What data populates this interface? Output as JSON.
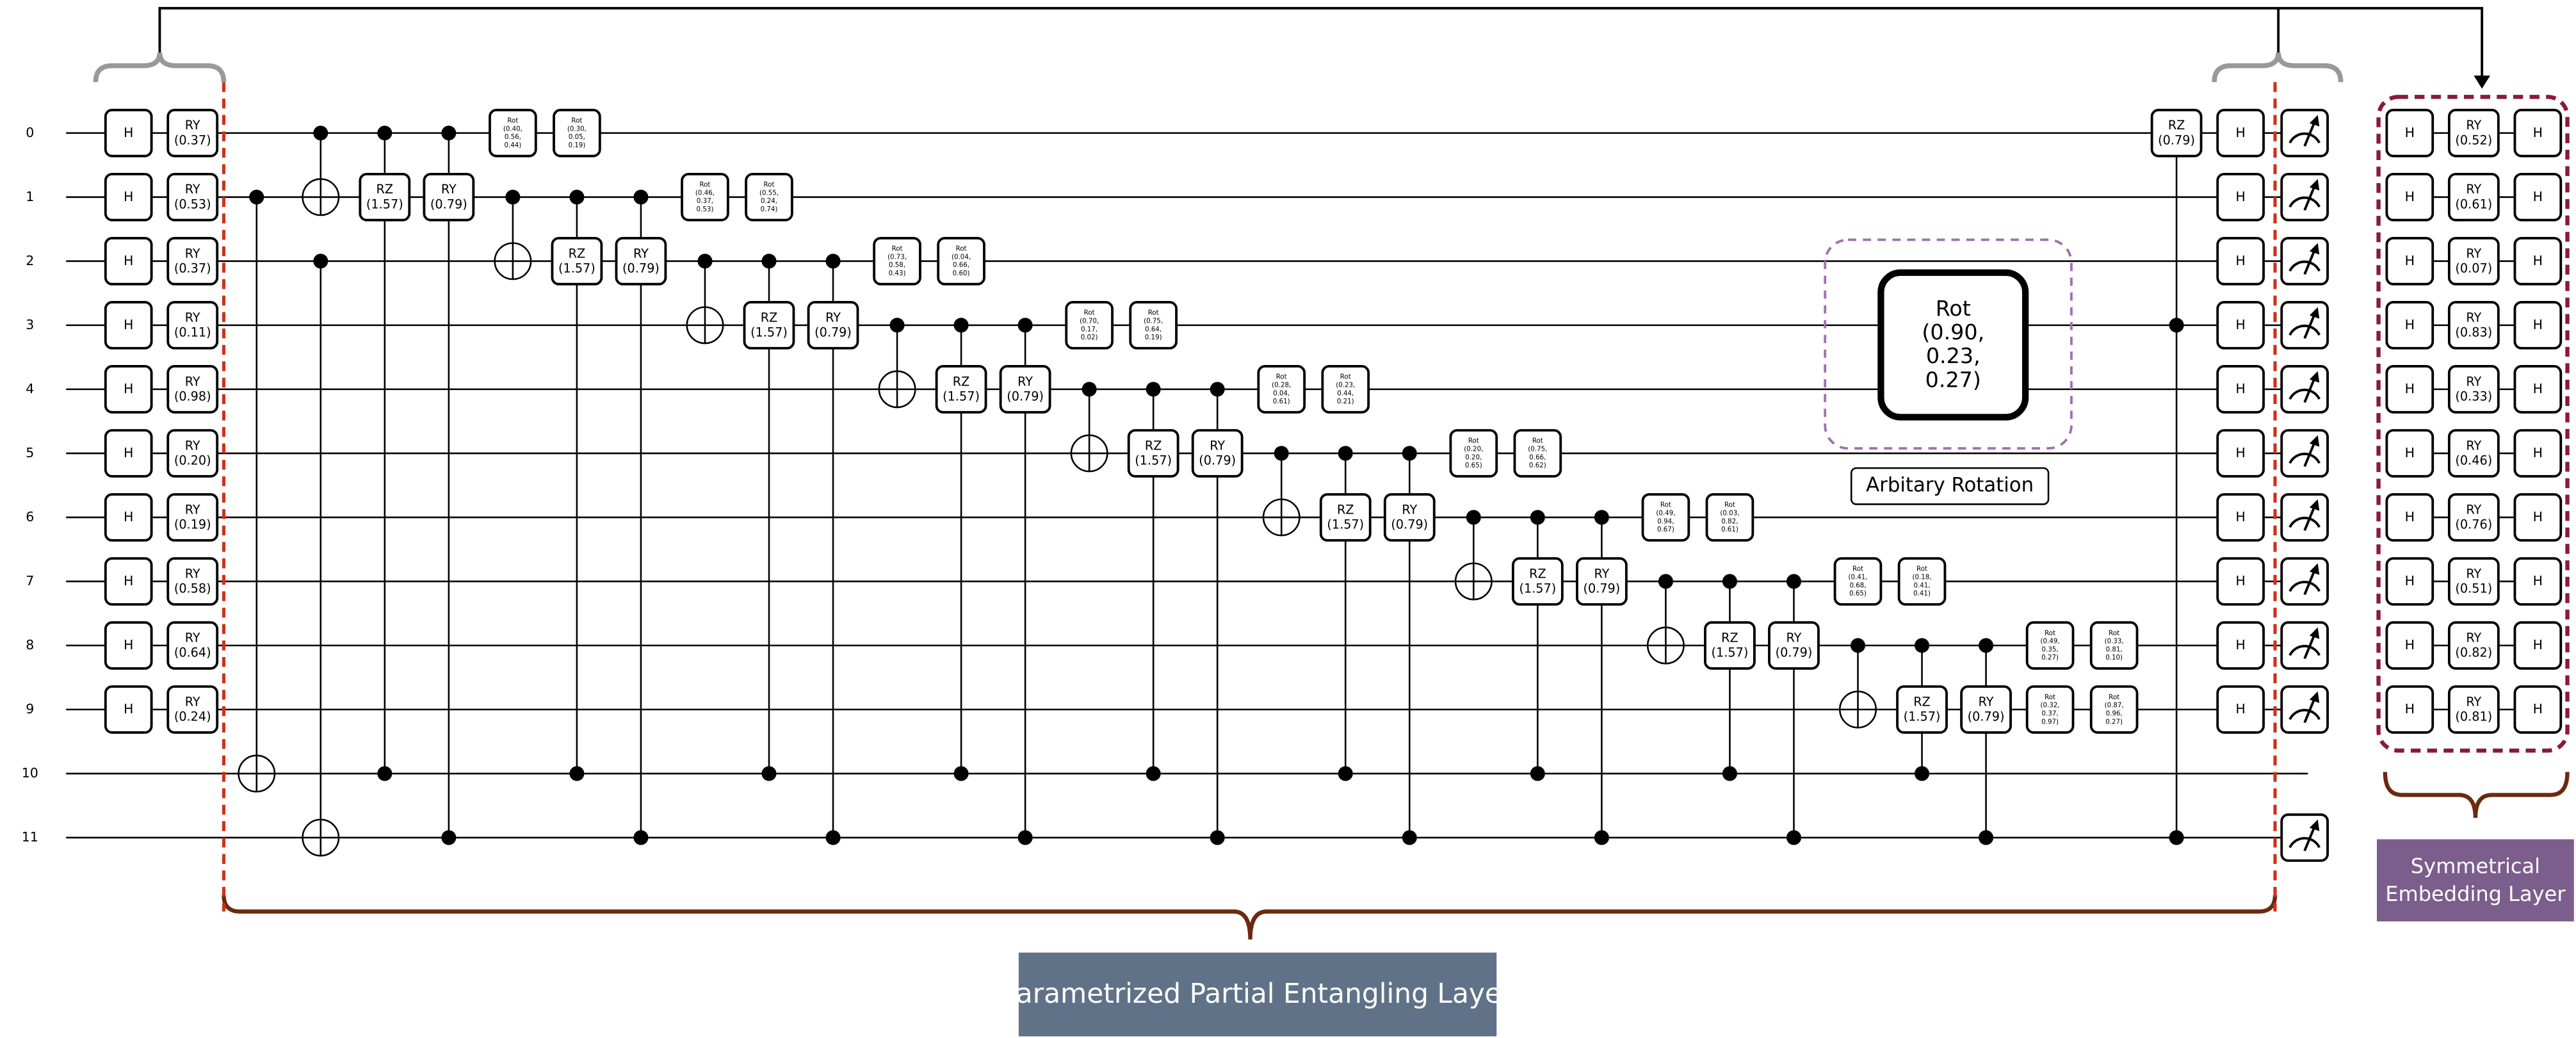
{
  "wire_labels": [
    "0",
    "1",
    "2",
    "3",
    "4",
    "5",
    "6",
    "7",
    "8",
    "9",
    "10",
    "11"
  ],
  "encoding_layer": {
    "gates": [
      {
        "h": "H",
        "ry": "RY",
        "angle": "(0.37)"
      },
      {
        "h": "H",
        "ry": "RY",
        "angle": "(0.53)"
      },
      {
        "h": "H",
        "ry": "RY",
        "angle": "(0.37)"
      },
      {
        "h": "H",
        "ry": "RY",
        "angle": "(0.11)"
      },
      {
        "h": "H",
        "ry": "RY",
        "angle": "(0.98)"
      },
      {
        "h": "H",
        "ry": "RY",
        "angle": "(0.20)"
      },
      {
        "h": "H",
        "ry": "RY",
        "angle": "(0.19)"
      },
      {
        "h": "H",
        "ry": "RY",
        "angle": "(0.58)"
      },
      {
        "h": "H",
        "ry": "RY",
        "angle": "(0.64)"
      },
      {
        "h": "H",
        "ry": "RY",
        "angle": "(0.24)"
      }
    ]
  },
  "entangling_layer": {
    "rz_gates": [
      {
        "name": "RZ",
        "angle": "(1.57)"
      },
      {
        "name": "RZ",
        "angle": "(1.57)"
      },
      {
        "name": "RZ",
        "angle": "(1.57)"
      },
      {
        "name": "RZ",
        "angle": "(1.57)"
      },
      {
        "name": "RZ",
        "angle": "(1.57)"
      },
      {
        "name": "RZ",
        "angle": "(1.57)"
      },
      {
        "name": "RZ",
        "angle": "(1.57)"
      },
      {
        "name": "RZ",
        "angle": "(1.57)"
      },
      {
        "name": "RZ",
        "angle": "(1.57)"
      }
    ],
    "ry_gates": [
      {
        "name": "RY",
        "angle": "(0.79)"
      },
      {
        "name": "RY",
        "angle": "(0.79)"
      },
      {
        "name": "RY",
        "angle": "(0.79)"
      },
      {
        "name": "RY",
        "angle": "(0.79)"
      },
      {
        "name": "RY",
        "angle": "(0.79)"
      },
      {
        "name": "RY",
        "angle": "(0.79)"
      },
      {
        "name": "RY",
        "angle": "(0.79)"
      },
      {
        "name": "RY",
        "angle": "(0.79)"
      },
      {
        "name": "RY",
        "angle": "(0.79)"
      }
    ],
    "rot_gates": [
      {
        "name": "Rot",
        "angles": [
          "(0.40,",
          "0.56,",
          "0.44)"
        ]
      },
      {
        "name": "Rot",
        "angles": [
          "(0.30,",
          "0.05,",
          "0.19)"
        ]
      },
      {
        "name": "Rot",
        "angles": [
          "(0.46,",
          "0.37,",
          "0.53)"
        ]
      },
      {
        "name": "Rot",
        "angles": [
          "(0.55,",
          "0.24,",
          "0.74)"
        ]
      },
      {
        "name": "Rot",
        "angles": [
          "(0.73,",
          "0.58,",
          "0.43)"
        ]
      },
      {
        "name": "Rot",
        "angles": [
          "(0.04,",
          "0.66,",
          "0.60)"
        ]
      },
      {
        "name": "Rot",
        "angles": [
          "(0.70,",
          "0.17,",
          "0.02)"
        ]
      },
      {
        "name": "Rot",
        "angles": [
          "(0.75,",
          "0.64,",
          "0.19)"
        ]
      },
      {
        "name": "Rot",
        "angles": [
          "(0.28,",
          "0.04,",
          "0.61)"
        ]
      },
      {
        "name": "Rot",
        "angles": [
          "(0.23,",
          "0.44,",
          "0.21)"
        ]
      },
      {
        "name": "Rot",
        "angles": [
          "(0.20,",
          "0.20,",
          "0.65)"
        ]
      },
      {
        "name": "Rot",
        "angles": [
          "(0.75,",
          "0.66,",
          "0.62)"
        ]
      },
      {
        "name": "Rot",
        "angles": [
          "(0.49,",
          "0.94,",
          "0.67)"
        ]
      },
      {
        "name": "Rot",
        "angles": [
          "(0.03,",
          "0.82,",
          "0.61)"
        ]
      },
      {
        "name": "Rot",
        "angles": [
          "(0.41,",
          "0.68,",
          "0.65)"
        ]
      },
      {
        "name": "Rot",
        "angles": [
          "(0.18,",
          "0.41,",
          "0.41)"
        ]
      },
      {
        "name": "Rot",
        "angles": [
          "(0.49,",
          "0.35,",
          "0.27)"
        ]
      },
      {
        "name": "Rot",
        "angles": [
          "(0.33,",
          "0.81,",
          "0.10)"
        ]
      },
      {
        "name": "Rot",
        "angles": [
          "(0.32,",
          "0.37,",
          "0.97)"
        ]
      },
      {
        "name": "Rot",
        "angles": [
          "(0.87,",
          "0.96,",
          "0.27)"
        ]
      }
    ]
  },
  "final_layer": {
    "rz": {
      "name": "RZ",
      "angle": "(0.79)"
    },
    "h_gates": [
      "H",
      "H",
      "H",
      "H",
      "H",
      "H",
      "H",
      "H",
      "H",
      "H"
    ]
  },
  "callout": {
    "name": "Rot",
    "angles": [
      "(0.90,",
      "0.23,",
      "0.27)"
    ],
    "caption": "Arbitary Rotation"
  },
  "symmetric_layer": {
    "gates": [
      {
        "h1": "H",
        "ry": "RY",
        "angle": "(0.52)",
        "h2": "H"
      },
      {
        "h1": "H",
        "ry": "RY",
        "angle": "(0.61)",
        "h2": "H"
      },
      {
        "h1": "H",
        "ry": "RY",
        "angle": "(0.07)",
        "h2": "H"
      },
      {
        "h1": "H",
        "ry": "RY",
        "angle": "(0.83)",
        "h2": "H"
      },
      {
        "h1": "H",
        "ry": "RY",
        "angle": "(0.33)",
        "h2": "H"
      },
      {
        "h1": "H",
        "ry": "RY",
        "angle": "(0.46)",
        "h2": "H"
      },
      {
        "h1": "H",
        "ry": "RY",
        "angle": "(0.76)",
        "h2": "H"
      },
      {
        "h1": "H",
        "ry": "RY",
        "angle": "(0.51)",
        "h2": "H"
      },
      {
        "h1": "H",
        "ry": "RY",
        "angle": "(0.82)",
        "h2": "H"
      },
      {
        "h1": "H",
        "ry": "RY",
        "angle": "(0.81)",
        "h2": "H"
      }
    ]
  },
  "labels": {
    "entangling": "Parametrized Partial Entangling Layer",
    "embedding": [
      "Symmetrical",
      "Embedding Layer"
    ]
  }
}
